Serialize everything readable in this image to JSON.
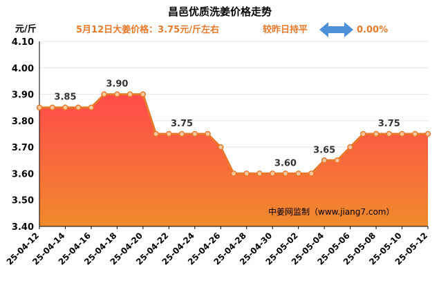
{
  "chart_data": {
    "type": "area",
    "title": "昌邑优质洗姜价格走势",
    "subtitle": "5月12日大姜价格：3.75元/斤左右",
    "change_label": "较昨日持平",
    "change_value": "0.00%",
    "ylabel": "元/斤",
    "ylim": [
      3.4,
      4.1
    ],
    "yticks": [
      "3.40",
      "3.50",
      "3.60",
      "3.70",
      "3.80",
      "3.90",
      "4.00",
      "4.10"
    ],
    "x": [
      "25-04-12",
      "25-04-13",
      "25-04-14",
      "25-04-15",
      "25-04-16",
      "25-04-17",
      "25-04-18",
      "25-04-19",
      "25-04-20",
      "25-04-21",
      "25-04-22",
      "25-04-23",
      "25-04-24",
      "25-04-25",
      "25-04-26",
      "25-04-27",
      "25-04-28",
      "25-04-29",
      "25-04-30",
      "25-05-01",
      "25-05-02",
      "25-05-03",
      "25-05-04",
      "25-05-05",
      "25-05-06",
      "25-05-07",
      "25-05-08",
      "25-05-09",
      "25-05-10",
      "25-05-11",
      "25-05-12"
    ],
    "xticks": [
      "25-04-12",
      "25-04-14",
      "25-04-16",
      "25-04-18",
      "25-04-20",
      "25-04-22",
      "25-04-24",
      "25-04-26",
      "25-04-28",
      "25-04-30",
      "25-05-02",
      "25-05-04",
      "25-05-06",
      "25-05-08",
      "25-05-10",
      "25-05-12"
    ],
    "values": [
      3.85,
      3.85,
      3.85,
      3.85,
      3.85,
      3.9,
      3.9,
      3.9,
      3.9,
      3.75,
      3.75,
      3.75,
      3.75,
      3.75,
      3.7,
      3.6,
      3.6,
      3.6,
      3.6,
      3.6,
      3.6,
      3.6,
      3.65,
      3.65,
      3.7,
      3.75,
      3.75,
      3.75,
      3.75,
      3.75,
      3.75
    ],
    "data_labels": [
      {
        "index": 2,
        "text": "3.85"
      },
      {
        "index": 6,
        "text": "3.90"
      },
      {
        "index": 11,
        "text": "3.75"
      },
      {
        "index": 19,
        "text": "3.60"
      },
      {
        "index": 22,
        "text": "3.65"
      },
      {
        "index": 27,
        "text": "3.75"
      }
    ],
    "watermark": "中姜网监制（www.jiang7.com）",
    "grid": true,
    "colors": {
      "line": "#e8792a",
      "marker_fill": "#f3c9a0",
      "area_top": "#ff4a4a",
      "area_bottom": "#f08a2c",
      "axis": "#000000",
      "grid": "#e6e6e6",
      "arrow": "#4d8fd8"
    }
  }
}
